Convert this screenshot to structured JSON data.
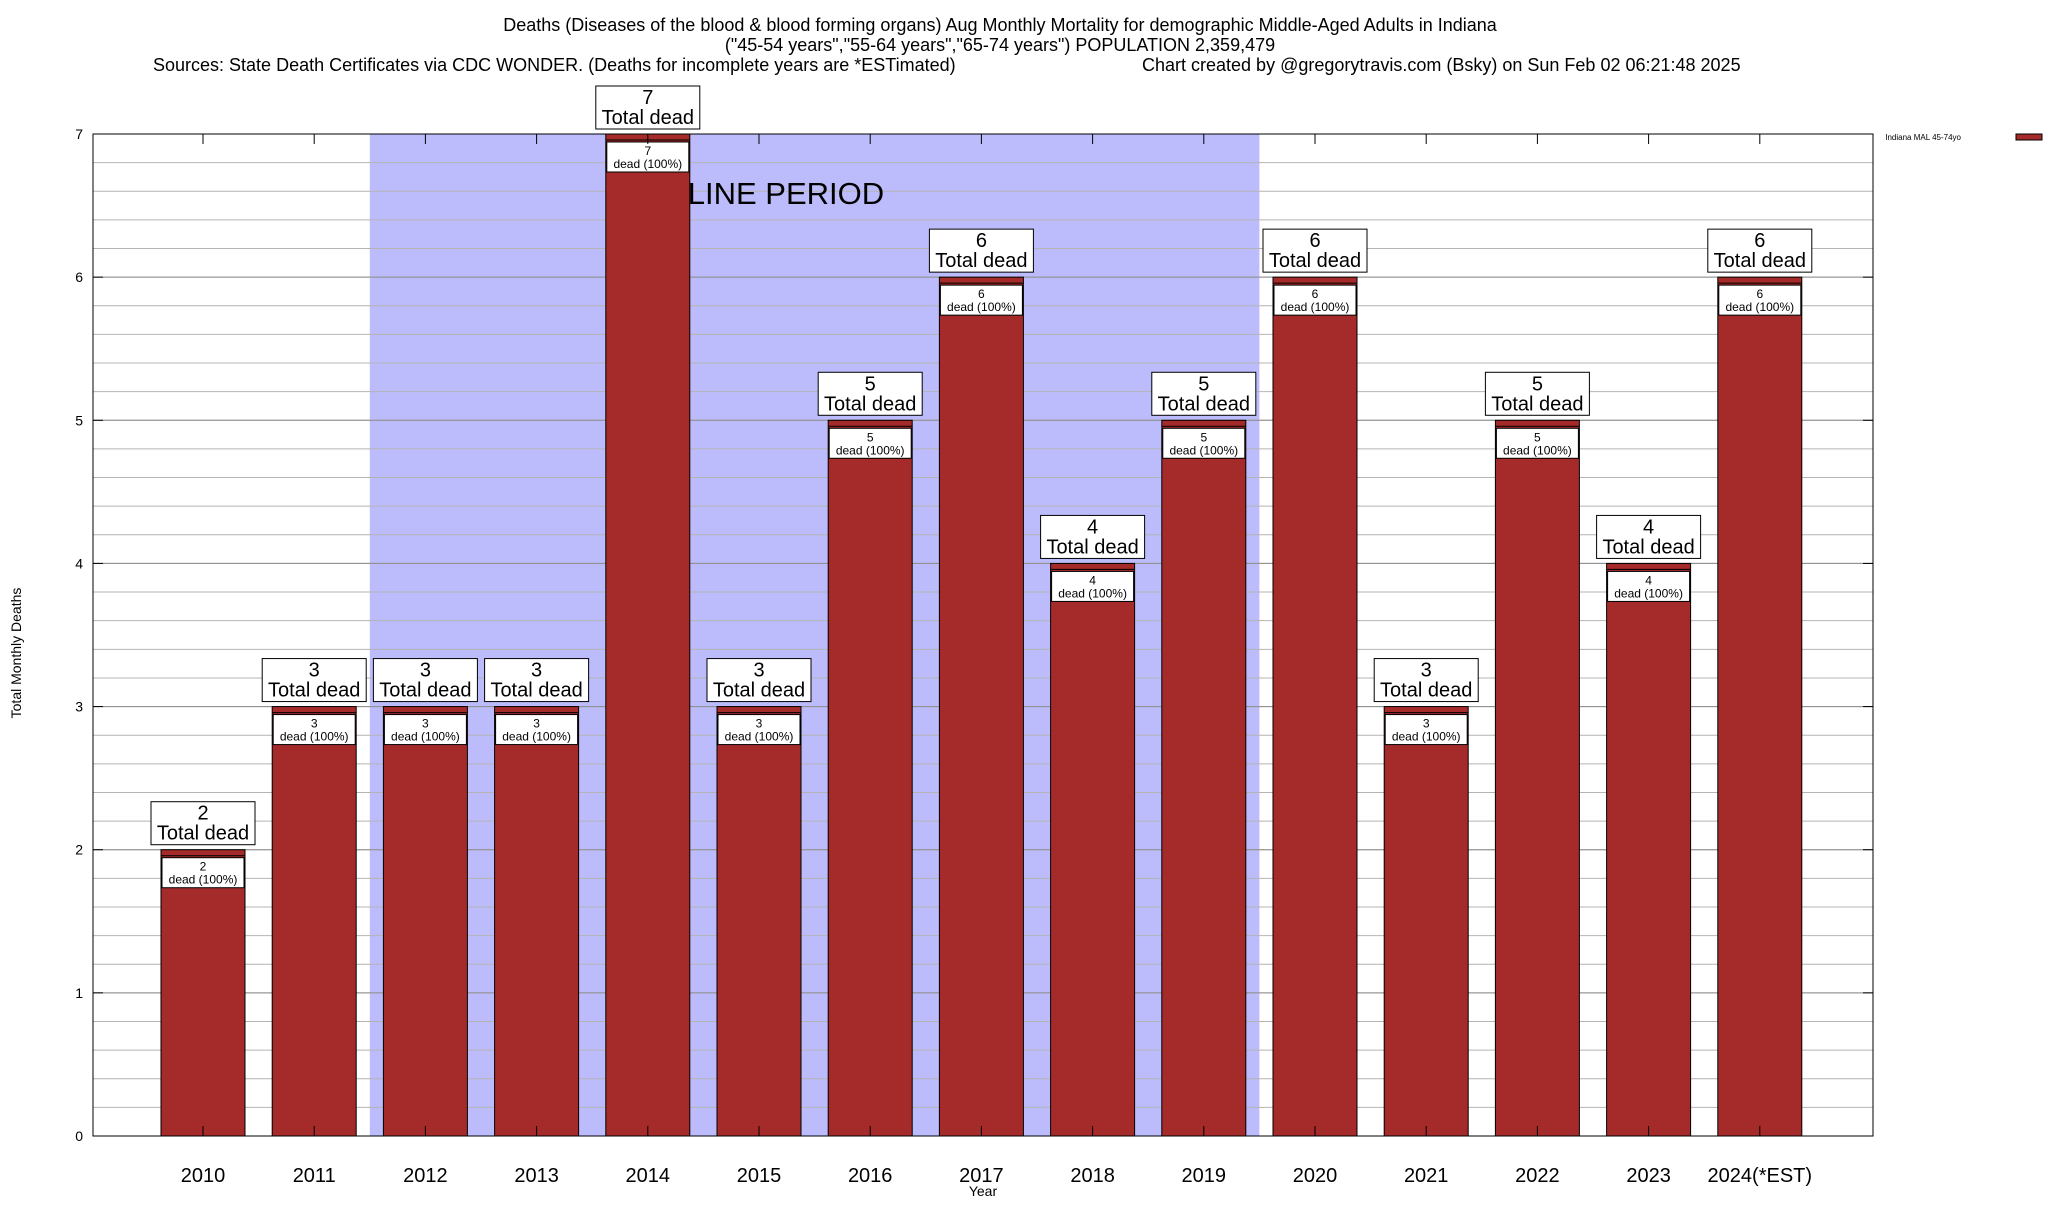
{
  "chart_data": {
    "type": "bar",
    "title": "Deaths (Diseases of the blood & blood forming organs) Aug Monthly Mortality for demographic Middle-Aged Adults in Indiana",
    "subtitle": "(\"45-54 years\",\"55-64 years\",\"65-74 years\") POPULATION 2,359,479",
    "sources": "Sources: State Death Certificates via CDC WONDER. (Deaths for incomplete years are *ESTimated)",
    "credit": "Chart created by @gregorytravis.com (Bsky) on Sun Feb 02 06:21:48 2025",
    "xlabel": "Year",
    "ylabel": "Total Monthly Deaths",
    "ylim": [
      0,
      7
    ],
    "yticks": [
      "0",
      "1",
      "2",
      "3",
      "4",
      "5",
      "6",
      "7"
    ],
    "categories": [
      "2010",
      "2011",
      "2012",
      "2013",
      "2014",
      "2015",
      "2016",
      "2017",
      "2018",
      "2019",
      "2020",
      "2021",
      "2022",
      "2023",
      "2024(*EST)"
    ],
    "series": [
      {
        "name": "Indiana MAL 45-74yo",
        "values": [
          2,
          3,
          3,
          3,
          7,
          3,
          5,
          6,
          4,
          5,
          6,
          3,
          5,
          4,
          6
        ],
        "color": "#a52a2a"
      }
    ],
    "total_label_text": "Total dead",
    "bar_label_text": "dead (100%)",
    "baseline": {
      "label": "BASELINE PERIOD",
      "from": "2012",
      "to": "2019",
      "color": "#bcbcfc"
    },
    "grid": true,
    "legend_position": "top-right"
  }
}
